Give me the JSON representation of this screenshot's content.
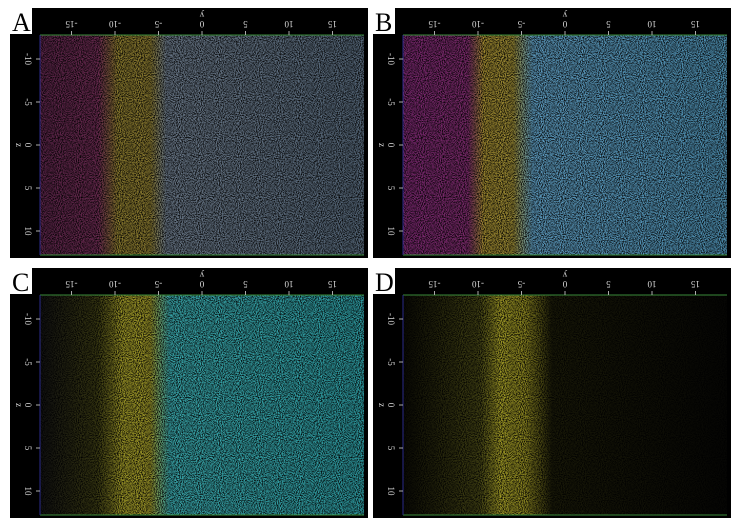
{
  "panels": [
    {
      "label": "A",
      "x_axis": {
        "label": "y",
        "ticks": [
          -15,
          -10,
          -5,
          0,
          5,
          10,
          15
        ]
      },
      "y_axis": {
        "label": "z",
        "ticks": [
          -10,
          -5,
          0,
          5,
          10
        ]
      }
    },
    {
      "label": "B",
      "x_axis": {
        "label": "y",
        "ticks": [
          -15,
          -10,
          -5,
          0,
          5,
          10,
          15
        ]
      },
      "y_axis": {
        "label": "z",
        "ticks": [
          -10,
          -5,
          0,
          5,
          10
        ]
      }
    },
    {
      "label": "C",
      "x_axis": {
        "label": "y",
        "ticks": [
          -15,
          -10,
          -5,
          0,
          5,
          10,
          15
        ]
      },
      "y_axis": {
        "label": "z",
        "ticks": [
          -10,
          -5,
          0,
          5,
          10
        ]
      }
    },
    {
      "label": "D",
      "x_axis": {
        "label": "y",
        "ticks": [
          -15,
          -10,
          -5,
          0,
          5,
          10,
          15
        ]
      },
      "y_axis": {
        "label": "z",
        "ticks": [
          -10,
          -5,
          0,
          5,
          10
        ]
      }
    }
  ]
}
